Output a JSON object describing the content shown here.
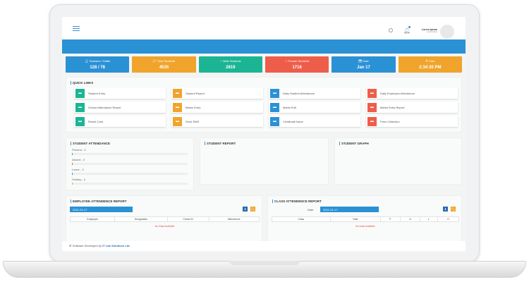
{
  "header": {
    "user_name": "Lorem Ipsum",
    "user_role": "Lorem Ipsum"
  },
  "stats": [
    {
      "label": "Teachers / Staffs",
      "value": "128 / 78",
      "color": "#2b91d5",
      "icon": "user-icon"
    },
    {
      "label": "Total Students",
      "value": "4535",
      "color": "#f0a42b",
      "icon": "folder-icon"
    },
    {
      "label": "Male Students",
      "value": "2819",
      "color": "#1cb593",
      "icon": "male-icon"
    },
    {
      "label": "Female Students",
      "value": "1716",
      "color": "#ee5d4a",
      "icon": "female-icon"
    },
    {
      "label": "Date",
      "value": "Jan 17",
      "color": "#2b91d5",
      "icon": "calendar-icon"
    },
    {
      "label": "Time",
      "value": "2:34:30 PM",
      "color": "#f0a42b",
      "icon": "clock-icon"
    }
  ],
  "quick_links": {
    "title": "QUICK LINKS",
    "items": [
      {
        "label": "Student Entry",
        "color": "#1cb593"
      },
      {
        "label": "Student Report",
        "color": "#f0a42b"
      },
      {
        "label": "Daily Student Attendance",
        "color": "#2b91d5"
      },
      {
        "label": "Daily Employee Attendance",
        "color": "#ee5d4a"
      },
      {
        "label": "School Attendance Report",
        "color": "#1cb593"
      },
      {
        "label": "Marks Entry",
        "color": "#f0a42b"
      },
      {
        "label": "Marks Edit",
        "color": "#2b91d5"
      },
      {
        "label": "Marks Entry Report",
        "color": "#ee5d4a"
      },
      {
        "label": "Result Card",
        "color": "#1cb593"
      },
      {
        "label": "Send SMS",
        "color": "#f0a42b"
      },
      {
        "label": "Certificate Issue",
        "color": "#2b91d5"
      },
      {
        "label": "Fees Collection",
        "color": "#ee5d4a"
      }
    ]
  },
  "student_attendance": {
    "title": "STUDENT ATTENDANCE",
    "items": [
      {
        "label": "Present - 0",
        "value": 0,
        "color": "#1cb593"
      },
      {
        "label": "Absent - 0",
        "value": 0,
        "color": "#ee5d4a"
      },
      {
        "label": "Leave - 0",
        "value": 0,
        "color": "#2b91d5"
      },
      {
        "label": "Holiday - 0",
        "value": 0,
        "color": "#f0a42b"
      }
    ]
  },
  "student_report": {
    "title": "STUDENT REPORT"
  },
  "student_graph": {
    "title": "STUDENT GRAPH"
  },
  "employee_report": {
    "title": "EMPLOYEE ATTENDENCE REPORT",
    "date": "2021-01-17",
    "columns": [
      "Employee",
      "Designation",
      "Check IN",
      "Attendence"
    ],
    "empty": "No Data Available"
  },
  "class_report": {
    "title": "CLASS ATTENDENCE REPORT",
    "date_label": "Date",
    "date": "2021-01-17",
    "columns": [
      "Class",
      "Total",
      "P",
      "A",
      "L",
      "H"
    ],
    "empty": "No Data Available"
  },
  "footer": {
    "text": "Software Developed by",
    "company": "IT Lab Solutions Ltd."
  }
}
